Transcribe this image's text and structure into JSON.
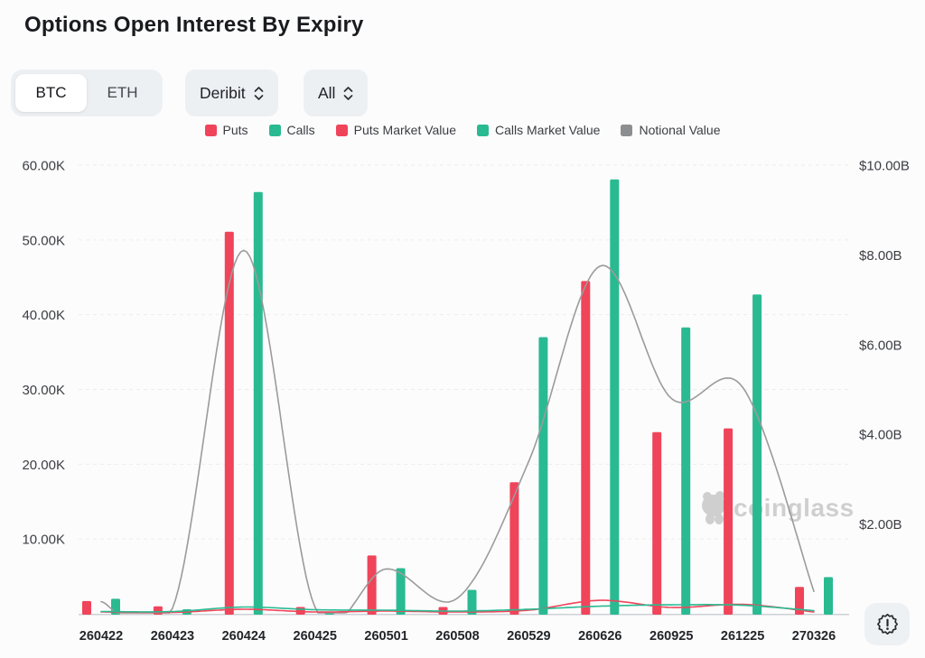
{
  "header": {
    "title": "Options Open Interest By Expiry"
  },
  "controls": {
    "asset_toggle": {
      "options": [
        "BTC",
        "ETH"
      ],
      "selected": "BTC"
    },
    "exchange_select": {
      "value": "Deribit",
      "icon": "chevron-updown-icon"
    },
    "range_select": {
      "value": "All",
      "icon": "chevron-updown-icon"
    }
  },
  "legend": {
    "items": [
      {
        "label": "Puts",
        "color": "#f0445a"
      },
      {
        "label": "Calls",
        "color": "#2aba91"
      },
      {
        "label": "Puts Market Value",
        "color": "#f0445a"
      },
      {
        "label": "Calls Market Value",
        "color": "#2aba91"
      },
      {
        "label": "Notional Value",
        "color": "#8c8e90"
      }
    ]
  },
  "watermark": {
    "text": "coinglass",
    "logo": "panda-logo-icon",
    "color": "#cbcbcb"
  },
  "footer": {
    "alert_button_icon": "badge-exclamation-icon"
  },
  "chart_data": {
    "type": "combo",
    "categories": [
      "260422",
      "260423",
      "260424",
      "260425",
      "260501",
      "260508",
      "260529",
      "260626",
      "260925",
      "261225",
      "270326"
    ],
    "series": [
      {
        "name": "Puts",
        "type": "bar",
        "axis": "left",
        "unit": "K contracts",
        "color": "#f0445a",
        "values": [
          1.7,
          1.0,
          51.1,
          0.9,
          7.8,
          0.9,
          17.6,
          44.5,
          24.3,
          24.8,
          3.6
        ]
      },
      {
        "name": "Calls",
        "type": "bar",
        "axis": "left",
        "unit": "K contracts",
        "color": "#2aba91",
        "values": [
          2.0,
          0.6,
          56.4,
          0.1,
          6.1,
          3.2,
          37.0,
          58.1,
          38.3,
          42.7,
          4.9
        ]
      },
      {
        "name": "Puts Market Value",
        "type": "line",
        "axis": "right",
        "unit": "$B",
        "color": "#f0445a",
        "values": [
          0.04,
          0.03,
          0.1,
          0.04,
          0.06,
          0.04,
          0.08,
          0.3,
          0.14,
          0.21,
          0.04
        ]
      },
      {
        "name": "Calls Market Value",
        "type": "line",
        "axis": "right",
        "unit": "$B",
        "color": "#2aba91",
        "values": [
          0.05,
          0.05,
          0.15,
          0.09,
          0.08,
          0.06,
          0.1,
          0.17,
          0.2,
          0.19,
          0.07
        ]
      },
      {
        "name": "Notional Value",
        "type": "line",
        "axis": "right",
        "unit": "$B",
        "color": "#9b9b9b",
        "values": [
          0.27,
          0.12,
          8.1,
          0.15,
          1.0,
          0.35,
          3.4,
          7.75,
          4.8,
          5.05,
          0.5
        ]
      }
    ],
    "left_axis": {
      "tick_labels": [
        "10.00K",
        "20.00K",
        "30.00K",
        "40.00K",
        "50.00K",
        "60.00K"
      ],
      "tick_values": [
        10,
        20,
        30,
        40,
        50,
        60
      ],
      "min": 0,
      "max": 60
    },
    "right_axis": {
      "tick_labels": [
        "$2.00B",
        "$4.00B",
        "$6.00B",
        "$8.00B",
        "$10.00B"
      ],
      "tick_values": [
        2,
        4,
        6,
        8,
        10
      ],
      "min": 0,
      "max": 10
    },
    "grid": true,
    "legend_position": "top"
  }
}
